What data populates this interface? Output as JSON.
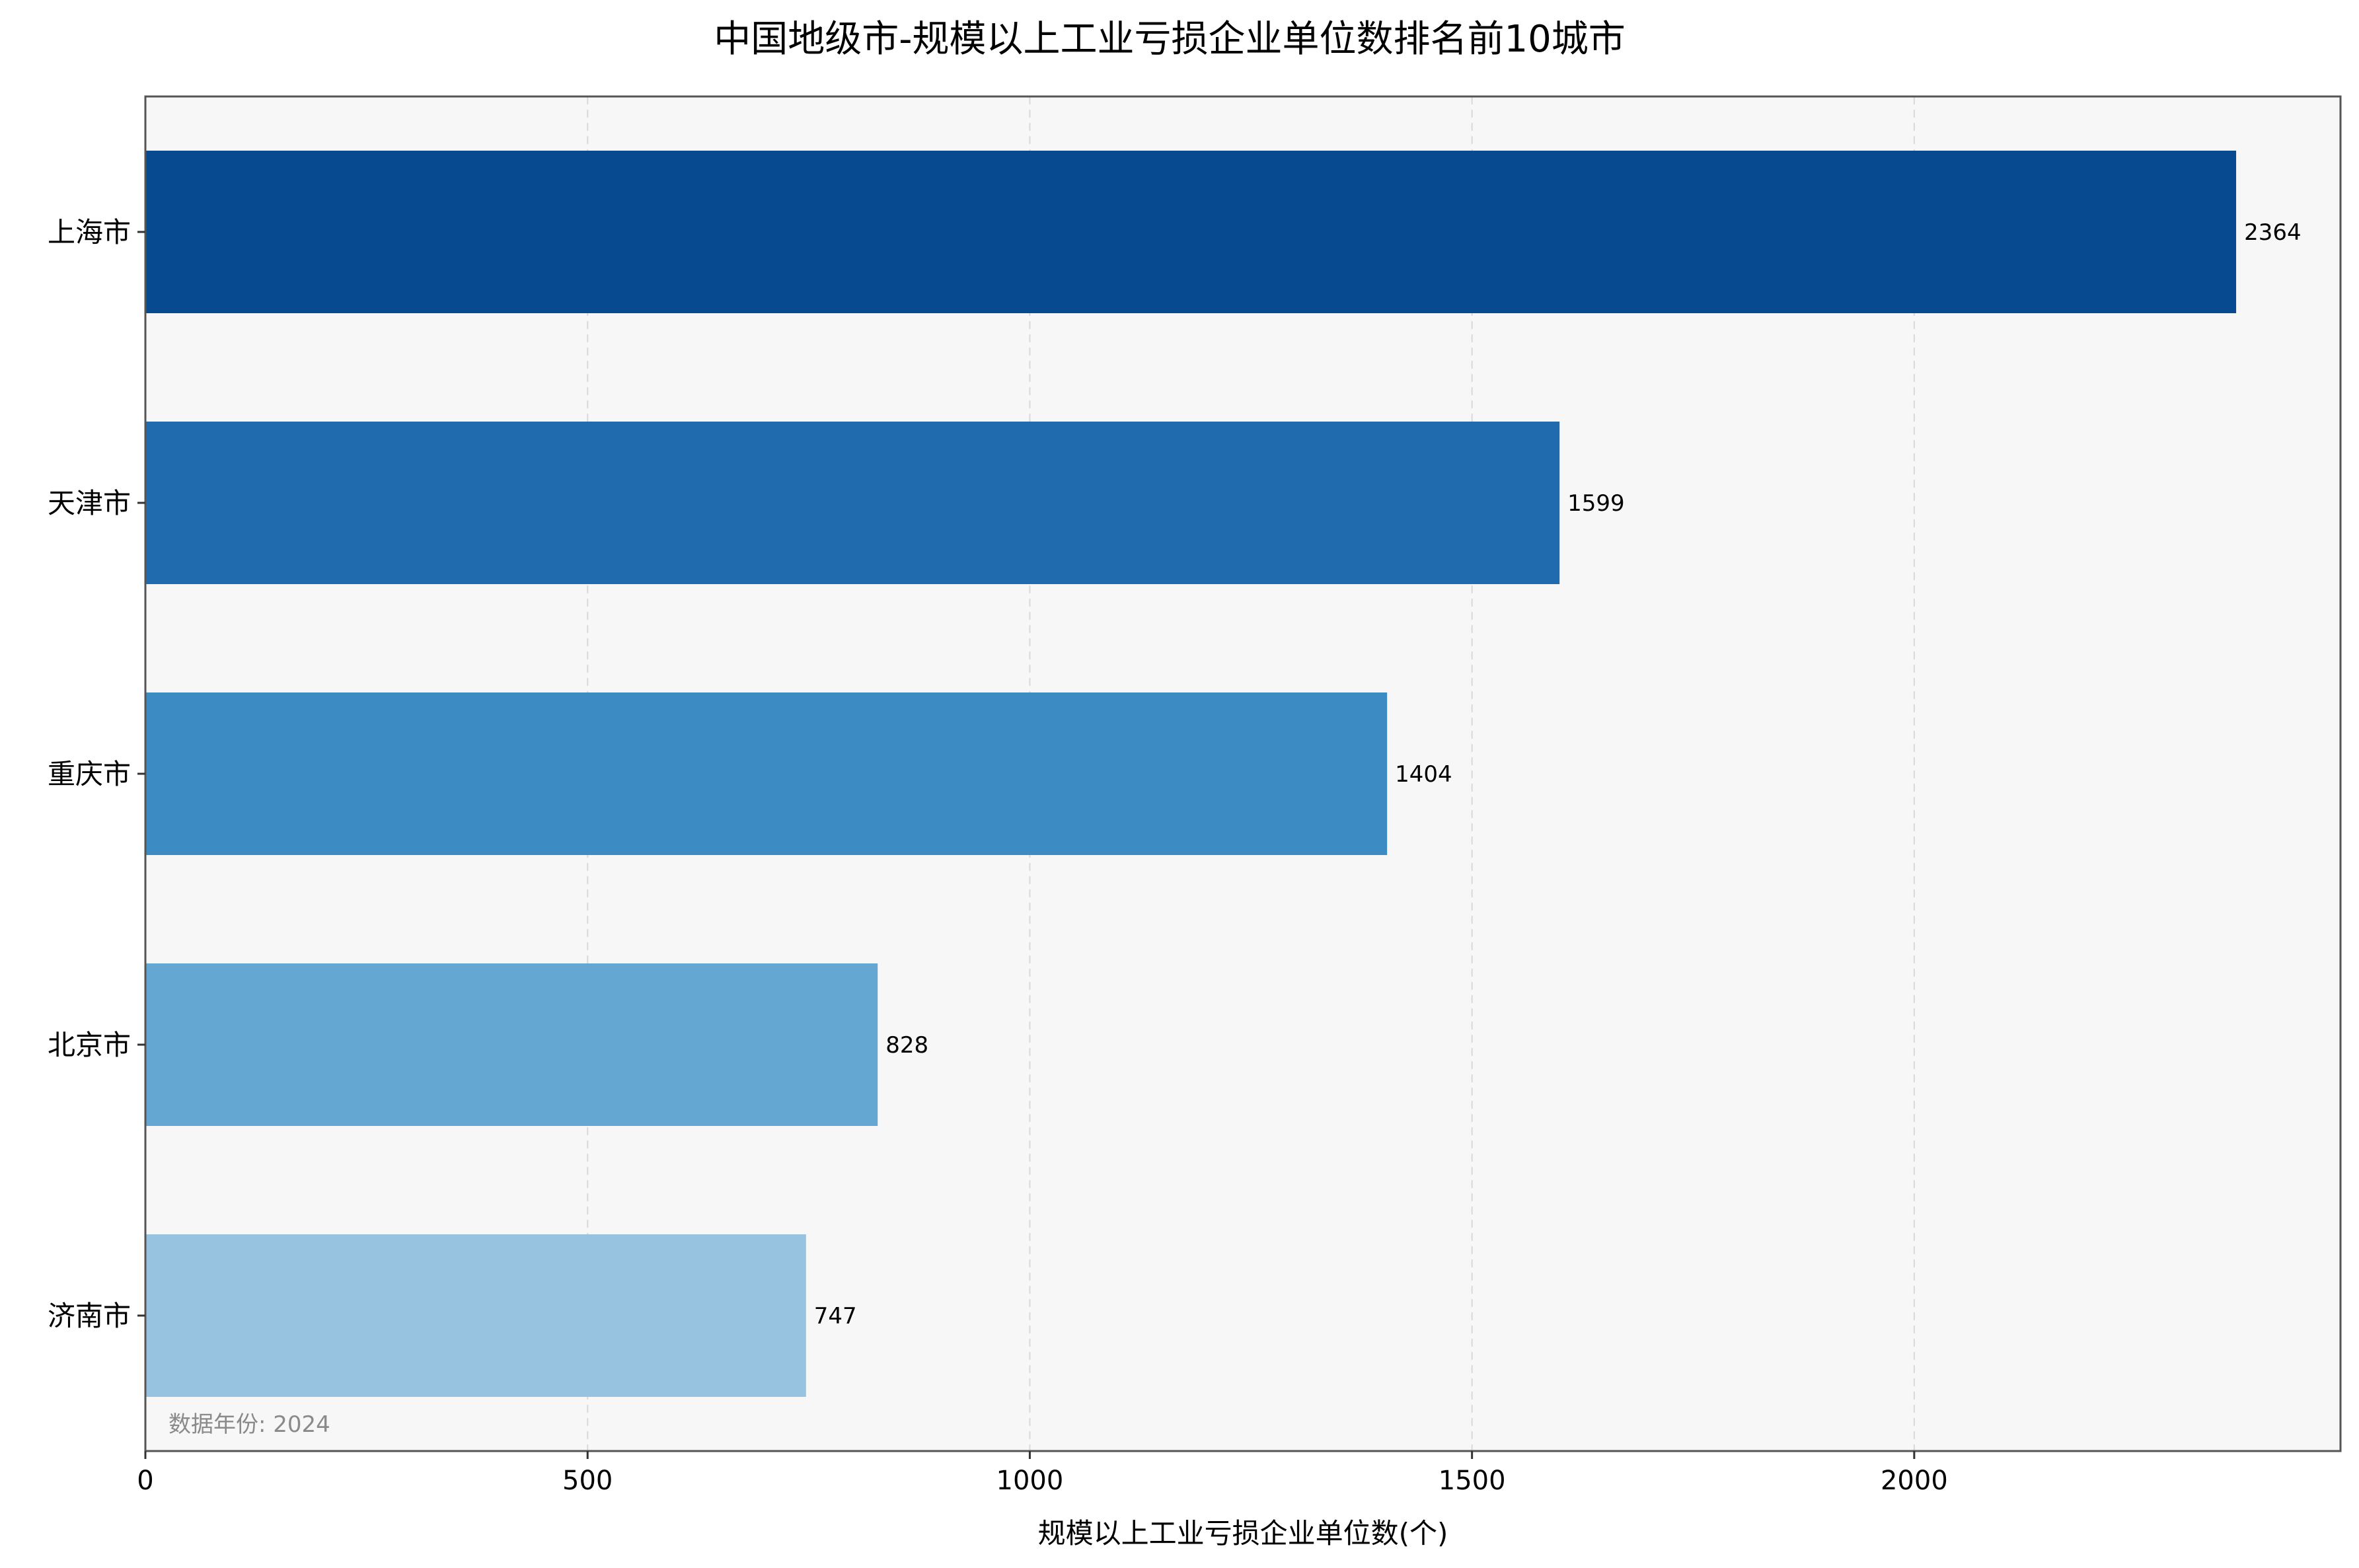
{
  "chart_data": {
    "type": "bar",
    "orientation": "horizontal",
    "title": "中国地级市-规模以上工业亏损企业单位数排名前10城市",
    "xlabel": "规模以上工业亏损企业单位数(个)",
    "ylabel": "",
    "categories": [
      "上海市",
      "天津市",
      "重庆市",
      "北京市",
      "济南市"
    ],
    "values": [
      2364,
      1599,
      1404,
      828,
      747
    ],
    "bar_colors": [
      "#084a8f",
      "#1f6bae",
      "#3d8bc3",
      "#64a7d2",
      "#97c3e0"
    ],
    "xlim": [
      0,
      2482
    ],
    "xticks": [
      0,
      500,
      1000,
      1500,
      2000
    ],
    "grid": "x-dashed",
    "background_color": "#f7f7f7",
    "note": "数据年份: 2024"
  }
}
